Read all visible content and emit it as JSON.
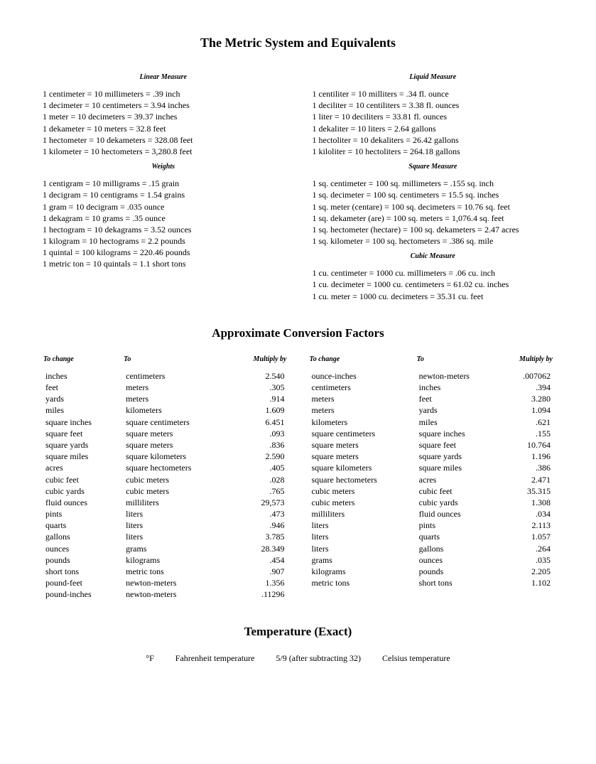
{
  "title1": "The Metric System and Equivalents",
  "title2": "Approximate Conversion Factors",
  "title3": "Temperature (Exact)",
  "sections": {
    "linear": {
      "title": "Linear Measure",
      "lines": [
        "1 centimeter = 10 millimeters = .39 inch",
        "1 decimeter = 10 centimeters = 3.94 inches",
        "1 meter = 10 decimeters = 39.37 inches",
        "1 dekameter = 10 meters = 32.8 feet",
        "1 hectometer = 10 dekameters = 328.08 feet",
        "1 kilometer = 10 hectometers = 3,280.8 feet"
      ]
    },
    "weights": {
      "title": "Weights",
      "lines": [
        "1 centigram = 10 milligrams = .15 grain",
        "1 decigram = 10 centigrams = 1.54 grains",
        "1 gram = 10 decigram = .035 ounce",
        "1 dekagram = 10 grams = .35 ounce",
        "1 hectogram = 10 dekagrams = 3.52 ounces",
        "1 kilogram = 10 hectograms = 2.2 pounds",
        "1 quintal = 100 kilograms = 220.46 pounds",
        "1 metric ton = 10 quintals = 1.1 short tons"
      ]
    },
    "liquid": {
      "title": "Liquid Measure",
      "lines": [
        "1 centiliter = 10 milliters = .34 fl. ounce",
        "1 deciliter = 10 centiliters = 3.38 fl. ounces",
        "1 liter = 10 deciliters = 33.81 fl. ounces",
        "1 dekaliter = 10 liters = 2.64 gallons",
        "1 hectoliter = 10 dekaliters = 26.42 gallons",
        "1 kiloliter = 10 hectoliters = 264.18 gallons"
      ]
    },
    "square": {
      "title": "Square Measure",
      "lines": [
        "1 sq. centimeter = 100 sq. millimeters = .155 sq. inch",
        "1 sq. decimeter = 100 sq. centimeters = 15.5 sq. inches",
        "1 sq. meter (centare) = 100 sq. decimeters = 10.76 sq. feet",
        "1 sq. dekameter (are) = 100 sq. meters = 1,076.4 sq. feet",
        "1 sq. hectometer (hectare) = 100 sq. dekameters = 2.47 acres",
        "1 sq. kilometer = 100 sq. hectometers = .386 sq. mile"
      ]
    },
    "cubic": {
      "title": "Cubic Measure",
      "lines": [
        "1 cu. centimeter = 1000 cu. millimeters = .06 cu. inch",
        "1 cu. decimeter = 1000 cu. centimeters = 61.02 cu. inches",
        "1 cu. meter = 1000 cu. decimeters = 35.31 cu. feet"
      ]
    }
  },
  "conv": {
    "headers": {
      "from": "To change",
      "to": "To",
      "by": "Multiply by"
    },
    "left": [
      [
        "inches",
        "centimeters",
        "2.540"
      ],
      [
        "feet",
        "meters",
        ".305"
      ],
      [
        "yards",
        "meters",
        ".914"
      ],
      [
        "miles",
        "kilometers",
        "1.609"
      ],
      [
        "square inches",
        "square centimeters",
        "6.451"
      ],
      [
        "square feet",
        "square meters",
        ".093"
      ],
      [
        "square yards",
        "square meters",
        ".836"
      ],
      [
        "square miles",
        "square kilometers",
        "2.590"
      ],
      [
        "acres",
        "square hectometers",
        ".405"
      ],
      [
        "cubic feet",
        "cubic meters",
        ".028"
      ],
      [
        "cubic yards",
        "cubic meters",
        ".765"
      ],
      [
        "fluid ounces",
        "milliliters",
        "29,573"
      ],
      [
        "pints",
        "liters",
        ".473"
      ],
      [
        "quarts",
        "liters",
        ".946"
      ],
      [
        "gallons",
        "liters",
        "3.785"
      ],
      [
        "ounces",
        "grams",
        "28.349"
      ],
      [
        "pounds",
        "kilograms",
        ".454"
      ],
      [
        "short tons",
        "metric tons",
        ".907"
      ],
      [
        "pound-feet",
        "newton-meters",
        "1.356"
      ],
      [
        "pound-inches",
        "newton-meters",
        ".11296"
      ]
    ],
    "right": [
      [
        "ounce-inches",
        "newton-meters",
        ".007062"
      ],
      [
        "centimeters",
        "inches",
        ".394"
      ],
      [
        "meters",
        "feet",
        "3.280"
      ],
      [
        "meters",
        "yards",
        "1.094"
      ],
      [
        "kilometers",
        "miles",
        ".621"
      ],
      [
        "square centimeters",
        "square inches",
        ".155"
      ],
      [
        "square meters",
        "square feet",
        "10.764"
      ],
      [
        "square meters",
        "square yards",
        "1.196"
      ],
      [
        "square kilometers",
        "square miles",
        ".386"
      ],
      [
        "square hectometers",
        "acres",
        "2.471"
      ],
      [
        "cubic meters",
        "cubic feet",
        "35.315"
      ],
      [
        "cubic meters",
        "cubic yards",
        "1.308"
      ],
      [
        "milliliters",
        "fluid ounces",
        ".034"
      ],
      [
        "liters",
        "pints",
        "2.113"
      ],
      [
        "liters",
        "quarts",
        "1.057"
      ],
      [
        "liters",
        "gallons",
        ".264"
      ],
      [
        "grams",
        "ounces",
        ".035"
      ],
      [
        "kilograms",
        "pounds",
        "2.205"
      ],
      [
        "metric tons",
        "short tons",
        "1.102"
      ]
    ]
  },
  "temp": {
    "sym": "°F",
    "c1": "Fahrenheit temperature",
    "c2": "5/9 (after subtracting 32)",
    "c3": "Celsius temperature"
  }
}
